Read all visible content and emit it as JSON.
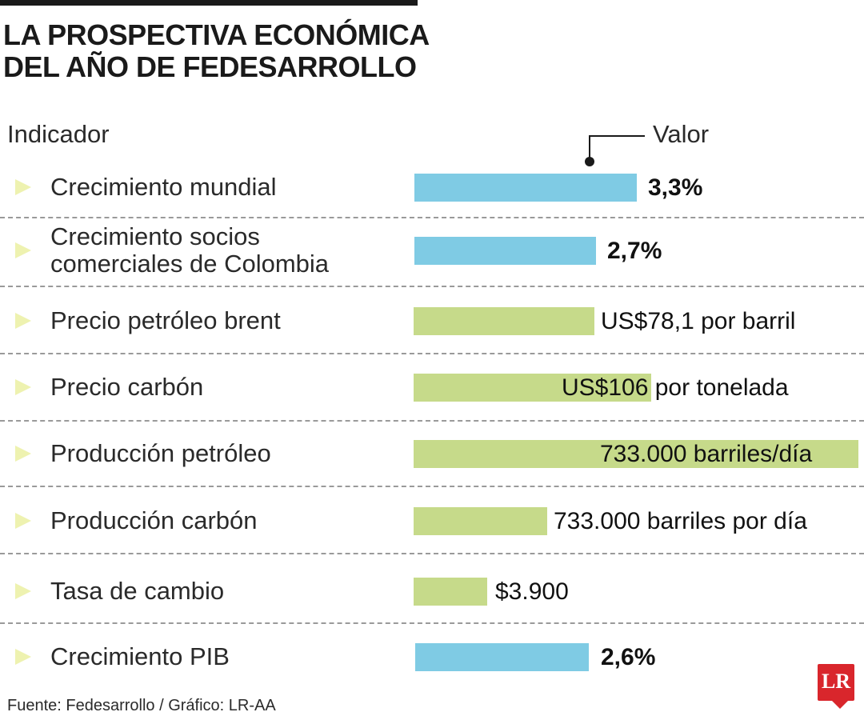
{
  "title_lines": [
    "LA PROSPECTIVA ECONÓMICA",
    "DEL AÑO DE FEDESARROLLO"
  ],
  "headers": {
    "indicator": "Indicador",
    "value": "Valor"
  },
  "source": "Fuente: Fedesarrollo / Gráfico: LR-AA",
  "logo": {
    "text": "LR"
  },
  "colors": {
    "blue_bar": "#7fcbe4",
    "green_bar": "#c6da8a",
    "arrow": "#eef2b0",
    "logo": "#d9262c"
  },
  "chart_data": {
    "type": "bar",
    "orientation": "horizontal",
    "categories": [
      "Crecimiento mundial",
      "Crecimiento socios comerciales de Colombia",
      "Precio petróleo brent",
      "Precio carbón",
      "Producción petróleo",
      "Producción carbón",
      "Tasa de cambio",
      "Crecimiento PIB"
    ],
    "rows": [
      {
        "label_lines": [
          "Crecimiento mundial"
        ],
        "value_text": "3,3%",
        "value": 3.3,
        "unit": "%",
        "color": "blue"
      },
      {
        "label_lines": [
          "Crecimiento socios",
          "comerciales de Colombia"
        ],
        "value_text": "2,7%",
        "value": 2.7,
        "unit": "%",
        "color": "blue"
      },
      {
        "label_lines": [
          "Precio petróleo brent"
        ],
        "value_text": "US$78,1 por barril",
        "value": 78.1,
        "unit": "US$ por barril",
        "color": "green"
      },
      {
        "label_lines": [
          "Precio carbón"
        ],
        "value_text": "US$106 por tonelada",
        "value": 106,
        "unit": "US$ por tonelada",
        "color": "green"
      },
      {
        "label_lines": [
          "Producción petróleo"
        ],
        "value_text": "733.000 barriles/día",
        "value": 733000,
        "unit": "barriles/día",
        "color": "green"
      },
      {
        "label_lines": [
          "Producción carbón"
        ],
        "value_text": "733.000 barriles por día",
        "value": 733000,
        "unit": "barriles por día",
        "color": "green"
      },
      {
        "label_lines": [
          "Tasa de cambio"
        ],
        "value_text": "$3.900",
        "value": 3900,
        "unit": "$",
        "color": "green"
      },
      {
        "label_lines": [
          "Crecimiento PIB"
        ],
        "value_text": "2,6%",
        "value": 2.6,
        "unit": "%",
        "color": "blue"
      }
    ]
  }
}
